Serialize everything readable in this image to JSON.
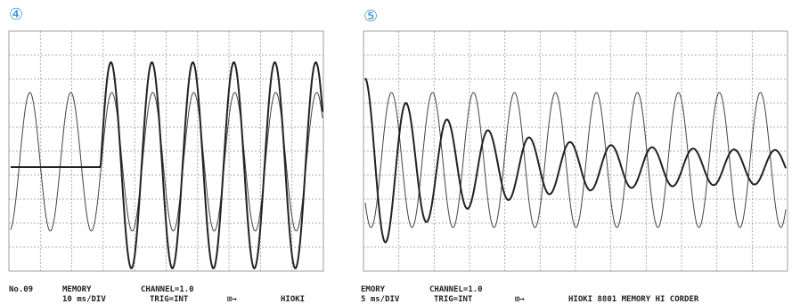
{
  "panels": [
    {
      "label": "④",
      "number": "No.09",
      "mode": "MEMORY",
      "timebase": "10 ms/DIV",
      "channel": "CHANNEL=1.0",
      "trigger": "TRIG=INT",
      "arrow": "⊞→",
      "brand": "HIOKI"
    },
    {
      "label": "⑤",
      "mode": "EMORY",
      "timebase": "5 ms/DIV",
      "channel": "CHANNEL=1.0",
      "trigger": "TRIG=INT",
      "arrow": "⊞→",
      "brand": "HIOKI 8801 MEMORY HI CORDER"
    }
  ]
}
